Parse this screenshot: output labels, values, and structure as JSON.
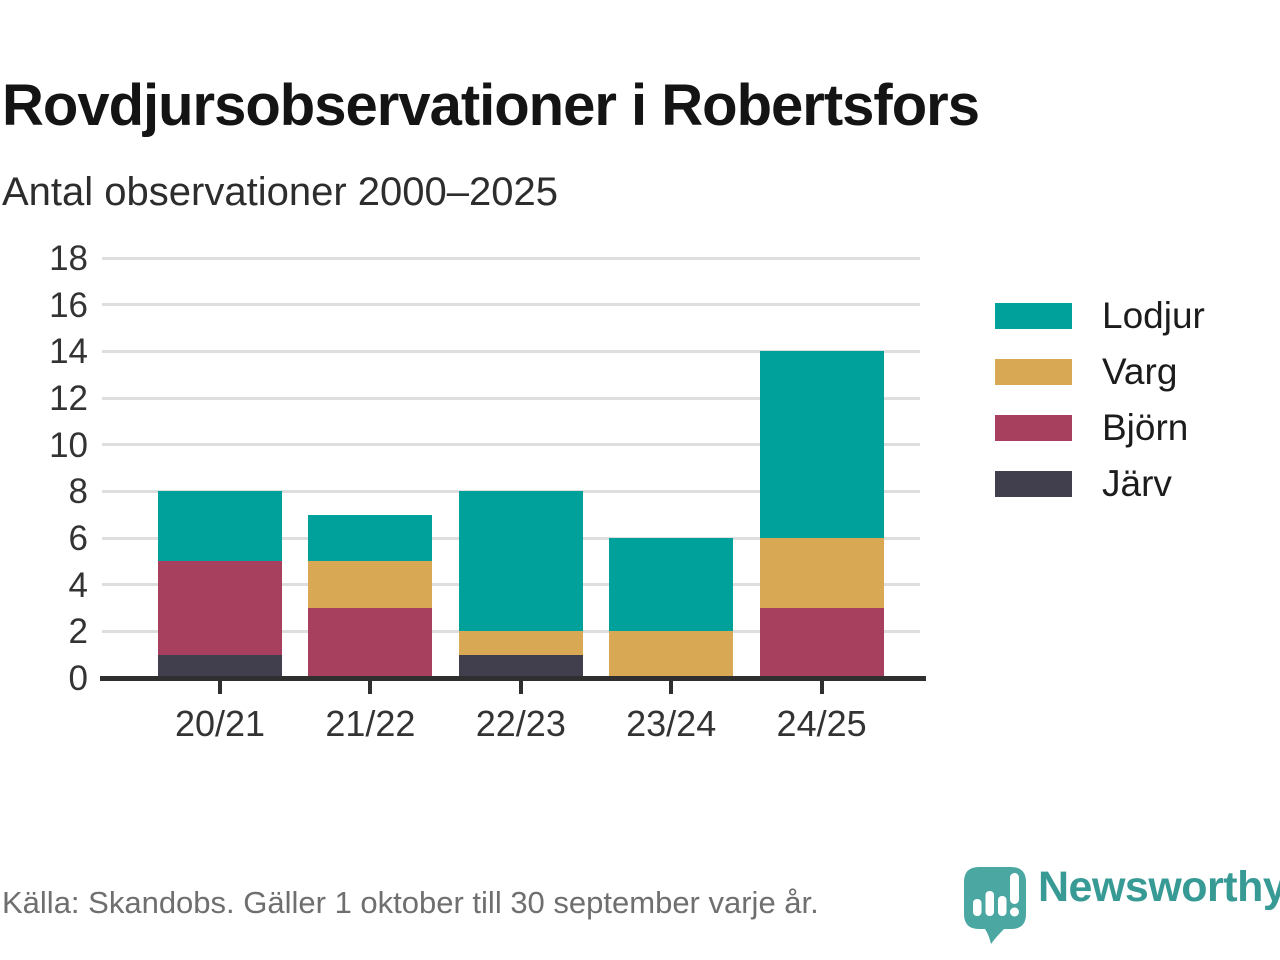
{
  "header": {
    "title": "Rovdjursobservationer i Robertsfors",
    "subtitle": "Antal observationer 2000–2025"
  },
  "footer": {
    "source": "Källa: Skandobs. Gäller 1 oktober till 30 september varje år.",
    "brand": "Newsworthy"
  },
  "colors": {
    "lodjur_teal": "#00a19a",
    "varg_gold": "#d8a854",
    "bjorn_maroon": "#a7405e",
    "jarv_slate": "#413e4d",
    "axis": "#2f2f2f",
    "gridline": "#dedede",
    "brand_teal": "#389a95",
    "logo_bubble_teal": "#4aa7a1"
  },
  "chart_data": {
    "type": "bar",
    "stacked": true,
    "title": "Rovdjursobservationer i Robertsfors",
    "subtitle": "Antal observationer 2000–2025",
    "categories": [
      "20/21",
      "21/22",
      "22/23",
      "23/24",
      "24/25"
    ],
    "series": [
      {
        "name": "Lodjur",
        "color": "#00a19a",
        "values": [
          3,
          2,
          6,
          4,
          8
        ]
      },
      {
        "name": "Varg",
        "color": "#d8a854",
        "values": [
          0,
          2,
          1,
          2,
          3
        ]
      },
      {
        "name": "Björn",
        "color": "#a7405e",
        "values": [
          4,
          3,
          0,
          0,
          3
        ]
      },
      {
        "name": "Järv",
        "color": "#413e4d",
        "values": [
          1,
          0,
          1,
          0,
          0
        ]
      }
    ],
    "stack_order_bottom_to_top": [
      "Järv",
      "Björn",
      "Varg",
      "Lodjur"
    ],
    "totals": [
      8,
      7,
      8,
      6,
      14
    ],
    "xlabel": "",
    "ylabel": "",
    "ylim": [
      0,
      18
    ],
    "yticks": [
      0,
      2,
      4,
      6,
      8,
      10,
      12,
      14,
      16,
      18
    ],
    "grid": true,
    "legend_position": "right"
  }
}
